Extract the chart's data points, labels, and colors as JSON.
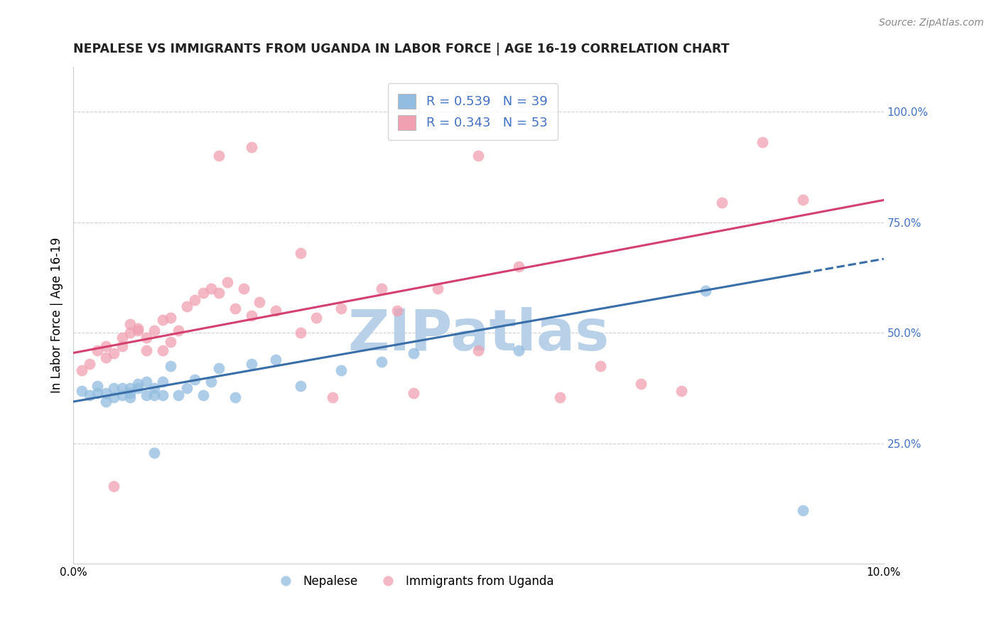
{
  "title": "NEPALESE VS IMMIGRANTS FROM UGANDA IN LABOR FORCE | AGE 16-19 CORRELATION CHART",
  "source": "Source: ZipAtlas.com",
  "ylabel": "In Labor Force | Age 16-19",
  "xlim": [
    0.0,
    0.1
  ],
  "ylim": [
    -0.02,
    1.1
  ],
  "yticks_right": [
    0.25,
    0.5,
    0.75,
    1.0
  ],
  "ytick_labels_right": [
    "25.0%",
    "50.0%",
    "75.0%",
    "100.0%"
  ],
  "legend_r_blue": "R = 0.539",
  "legend_n_blue": "N = 39",
  "legend_r_pink": "R = 0.343",
  "legend_n_pink": "N = 53",
  "blue_color": "#92bce0",
  "pink_color": "#f0a0b0",
  "trend_blue": "#3a6ea8",
  "trend_pink": "#d44070",
  "watermark": "ZIPatlas",
  "watermark_color": "#b8d0e8",
  "blue_scatter_x": [
    0.001,
    0.002,
    0.003,
    0.003,
    0.004,
    0.004,
    0.005,
    0.005,
    0.006,
    0.006,
    0.007,
    0.007,
    0.007,
    0.008,
    0.008,
    0.009,
    0.009,
    0.01,
    0.01,
    0.011,
    0.011,
    0.012,
    0.013,
    0.014,
    0.015,
    0.016,
    0.017,
    0.018,
    0.02,
    0.022,
    0.025,
    0.028,
    0.033,
    0.038,
    0.042,
    0.055,
    0.078,
    0.09,
    0.01
  ],
  "blue_scatter_y": [
    0.37,
    0.36,
    0.365,
    0.38,
    0.345,
    0.365,
    0.355,
    0.375,
    0.36,
    0.375,
    0.365,
    0.375,
    0.355,
    0.375,
    0.385,
    0.36,
    0.39,
    0.36,
    0.375,
    0.39,
    0.36,
    0.425,
    0.36,
    0.375,
    0.395,
    0.36,
    0.39,
    0.42,
    0.355,
    0.43,
    0.44,
    0.38,
    0.415,
    0.435,
    0.455,
    0.46,
    0.595,
    0.1,
    0.23
  ],
  "pink_scatter_x": [
    0.001,
    0.002,
    0.003,
    0.004,
    0.004,
    0.005,
    0.006,
    0.006,
    0.007,
    0.007,
    0.008,
    0.008,
    0.009,
    0.009,
    0.01,
    0.011,
    0.011,
    0.012,
    0.012,
    0.013,
    0.014,
    0.015,
    0.016,
    0.017,
    0.018,
    0.019,
    0.02,
    0.021,
    0.022,
    0.023,
    0.025,
    0.028,
    0.03,
    0.033,
    0.038,
    0.04,
    0.045,
    0.05,
    0.05,
    0.055,
    0.06,
    0.065,
    0.07,
    0.075,
    0.08,
    0.085,
    0.09,
    0.032,
    0.042,
    0.028,
    0.018,
    0.022,
    0.005
  ],
  "pink_scatter_y": [
    0.415,
    0.43,
    0.46,
    0.445,
    0.47,
    0.455,
    0.47,
    0.49,
    0.5,
    0.52,
    0.505,
    0.51,
    0.49,
    0.46,
    0.505,
    0.46,
    0.53,
    0.48,
    0.535,
    0.505,
    0.56,
    0.575,
    0.59,
    0.6,
    0.59,
    0.615,
    0.555,
    0.6,
    0.54,
    0.57,
    0.55,
    0.5,
    0.535,
    0.555,
    0.6,
    0.55,
    0.6,
    0.46,
    0.9,
    0.65,
    0.355,
    0.425,
    0.385,
    0.37,
    0.795,
    0.93,
    0.8,
    0.355,
    0.365,
    0.68,
    0.9,
    0.92,
    0.155
  ],
  "blue_trend_x0": 0.0,
  "blue_trend_y0": 0.345,
  "blue_trend_x1": 0.09,
  "blue_trend_y1": 0.635,
  "pink_trend_x0": 0.0,
  "pink_trend_y0": 0.455,
  "pink_trend_x1": 0.1,
  "pink_trend_y1": 0.8
}
